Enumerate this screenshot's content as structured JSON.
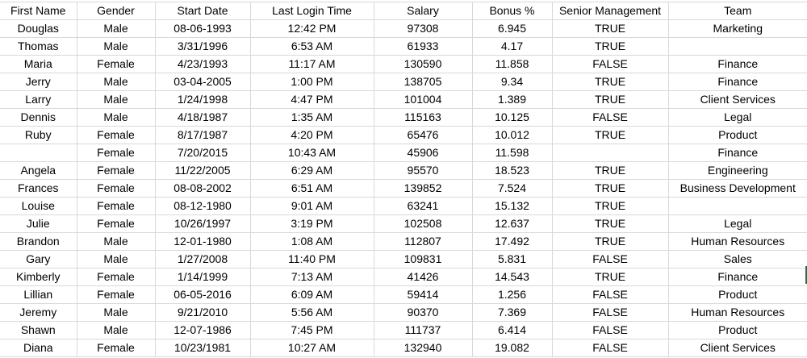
{
  "columns": [
    "First Name",
    "Gender",
    "Start Date",
    "Last Login Time",
    "Salary",
    "Bonus %",
    "Senior Management",
    "Team"
  ],
  "rows": [
    [
      "Douglas",
      "Male",
      "08-06-1993",
      "12:42 PM",
      "97308",
      "6.945",
      "TRUE",
      "Marketing"
    ],
    [
      "Thomas",
      "Male",
      "3/31/1996",
      "6:53 AM",
      "61933",
      "4.17",
      "TRUE",
      ""
    ],
    [
      "Maria",
      "Female",
      "4/23/1993",
      "11:17 AM",
      "130590",
      "11.858",
      "FALSE",
      "Finance"
    ],
    [
      "Jerry",
      "Male",
      "03-04-2005",
      "1:00 PM",
      "138705",
      "9.34",
      "TRUE",
      "Finance"
    ],
    [
      "Larry",
      "Male",
      "1/24/1998",
      "4:47 PM",
      "101004",
      "1.389",
      "TRUE",
      "Client Services"
    ],
    [
      "Dennis",
      "Male",
      "4/18/1987",
      "1:35 AM",
      "115163",
      "10.125",
      "FALSE",
      "Legal"
    ],
    [
      "Ruby",
      "Female",
      "8/17/1987",
      "4:20 PM",
      "65476",
      "10.012",
      "TRUE",
      "Product"
    ],
    [
      "",
      "Female",
      "7/20/2015",
      "10:43 AM",
      "45906",
      "11.598",
      "",
      "Finance"
    ],
    [
      "Angela",
      "Female",
      "11/22/2005",
      "6:29 AM",
      "95570",
      "18.523",
      "TRUE",
      "Engineering"
    ],
    [
      "Frances",
      "Female",
      "08-08-2002",
      "6:51 AM",
      "139852",
      "7.524",
      "TRUE",
      "Business Development"
    ],
    [
      "Louise",
      "Female",
      "08-12-1980",
      "9:01 AM",
      "63241",
      "15.132",
      "TRUE",
      ""
    ],
    [
      "Julie",
      "Female",
      "10/26/1997",
      "3:19 PM",
      "102508",
      "12.637",
      "TRUE",
      "Legal"
    ],
    [
      "Brandon",
      "Male",
      "12-01-1980",
      "1:08 AM",
      "112807",
      "17.492",
      "TRUE",
      "Human Resources"
    ],
    [
      "Gary",
      "Male",
      "1/27/2008",
      "11:40 PM",
      "109831",
      "5.831",
      "FALSE",
      "Sales"
    ],
    [
      "Kimberly",
      "Female",
      "1/14/1999",
      "7:13 AM",
      "41426",
      "14.543",
      "TRUE",
      "Finance"
    ],
    [
      "Lillian",
      "Female",
      "06-05-2016",
      "6:09 AM",
      "59414",
      "1.256",
      "FALSE",
      "Product"
    ],
    [
      "Jeremy",
      "Male",
      "9/21/2010",
      "5:56 AM",
      "90370",
      "7.369",
      "FALSE",
      "Human Resources"
    ],
    [
      "Shawn",
      "Male",
      "12-07-1986",
      "7:45 PM",
      "111737",
      "6.414",
      "FALSE",
      "Product"
    ],
    [
      "Diana",
      "Female",
      "10/23/1981",
      "10:27 AM",
      "132940",
      "19.082",
      "FALSE",
      "Client Services"
    ]
  ],
  "colors": {
    "gridline": "#d9d9d9",
    "selection_accent": "#217346"
  }
}
